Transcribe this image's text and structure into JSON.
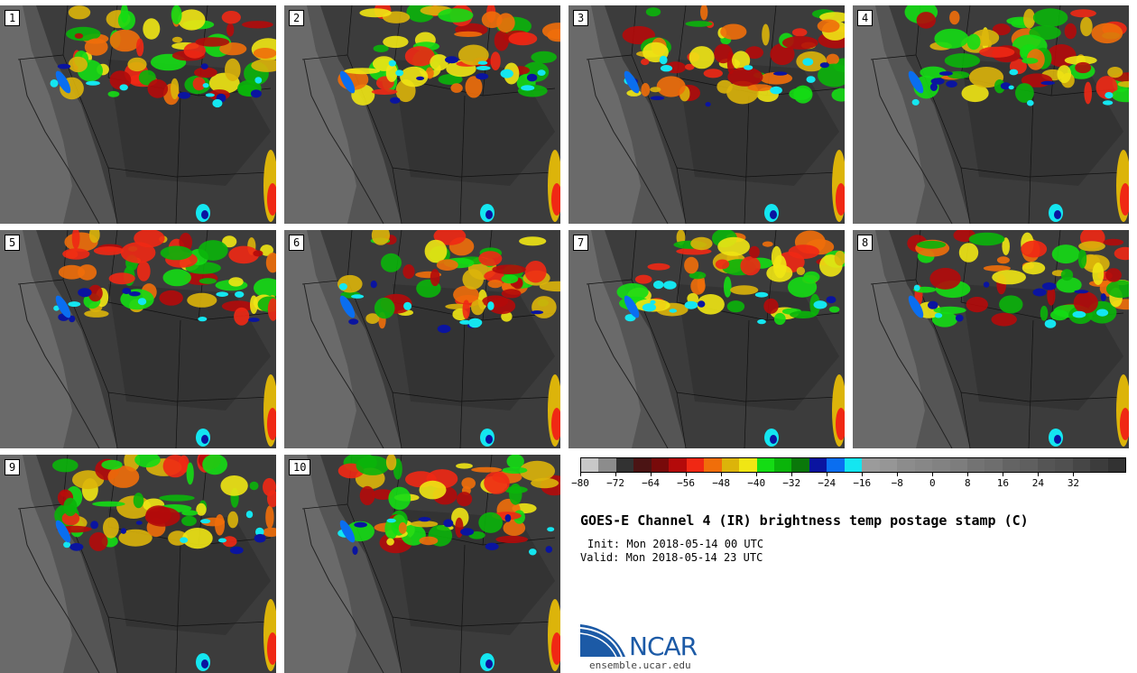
{
  "panels": [
    {
      "label": "1"
    },
    {
      "label": "2"
    },
    {
      "label": "3"
    },
    {
      "label": "4"
    },
    {
      "label": "5"
    },
    {
      "label": "6"
    },
    {
      "label": "7"
    },
    {
      "label": "8"
    },
    {
      "label": "9"
    },
    {
      "label": "10"
    }
  ],
  "colorbar": {
    "colors": [
      "#c8c8c8",
      "#8c8c8c",
      "#323232",
      "#4b1414",
      "#780a0a",
      "#b40a0a",
      "#f02814",
      "#f06e0a",
      "#dcb40a",
      "#f0e614",
      "#14dc14",
      "#0ab40a",
      "#0a780a",
      "#0a14a0",
      "#0a6ef0",
      "#14e6f0",
      "#9b9b9b",
      "#969696",
      "#8c8c8c",
      "#878787",
      "#828282",
      "#7d7d7d",
      "#737373",
      "#6e6e6e",
      "#646464",
      "#5f5f5f",
      "#555555",
      "#505050",
      "#464646",
      "#3c3c3c",
      "#323232"
    ],
    "min": -80,
    "max": 44,
    "ticks": [
      "−80",
      "−72",
      "−64",
      "−56",
      "−48",
      "−40",
      "−32",
      "−24",
      "−16",
      "−8",
      "0",
      "8",
      "16",
      "24",
      "32"
    ],
    "tick_values": [
      -80,
      -72,
      -64,
      -56,
      -48,
      -40,
      -32,
      -24,
      -16,
      -8,
      0,
      8,
      16,
      24,
      32
    ]
  },
  "title": "GOES-E Channel 4 (IR) brightness temp postage stamp (C)",
  "init": "Init: Mon 2018-05-14 00 UTC",
  "valid": "Valid: Mon 2018-05-14 23 UTC",
  "logo": {
    "text": "NCAR",
    "color": "#1c5aa6"
  },
  "site": "ensemble.ucar.edu"
}
